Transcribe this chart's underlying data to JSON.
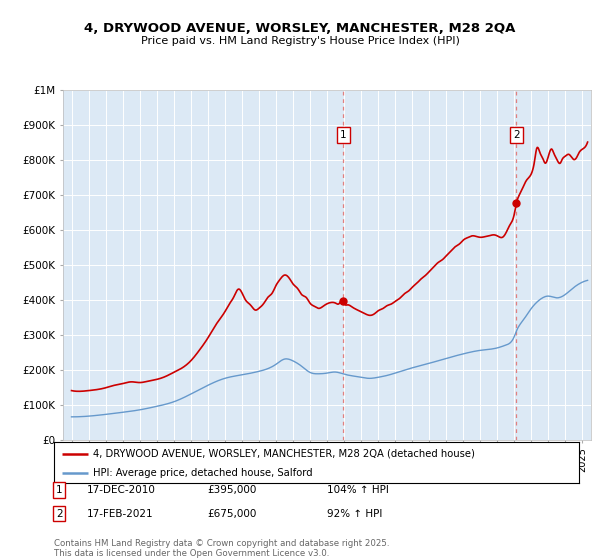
{
  "title1": "4, DRYWOOD AVENUE, WORSLEY, MANCHESTER, M28 2QA",
  "title2": "Price paid vs. HM Land Registry's House Price Index (HPI)",
  "legend_red": "4, DRYWOOD AVENUE, WORSLEY, MANCHESTER, M28 2QA (detached house)",
  "legend_blue": "HPI: Average price, detached house, Salford",
  "annotation1_date": "17-DEC-2010",
  "annotation1_price": "£395,000",
  "annotation1_hpi": "104% ↑ HPI",
  "annotation2_date": "17-FEB-2021",
  "annotation2_price": "£675,000",
  "annotation2_hpi": "92% ↑ HPI",
  "footer": "Contains HM Land Registry data © Crown copyright and database right 2025.\nThis data is licensed under the Open Government Licence v3.0.",
  "background_color": "#ffffff",
  "plot_bg_color": "#dce9f5",
  "red_color": "#cc0000",
  "blue_color": "#6699cc",
  "grid_color": "#cccccc",
  "marker1_year": 2010.96,
  "marker2_year": 2021.12,
  "sale1_price": 395000,
  "sale2_price": 675000,
  "ylim": [
    0,
    1000000
  ],
  "xlim": [
    1994.5,
    2025.5
  ]
}
